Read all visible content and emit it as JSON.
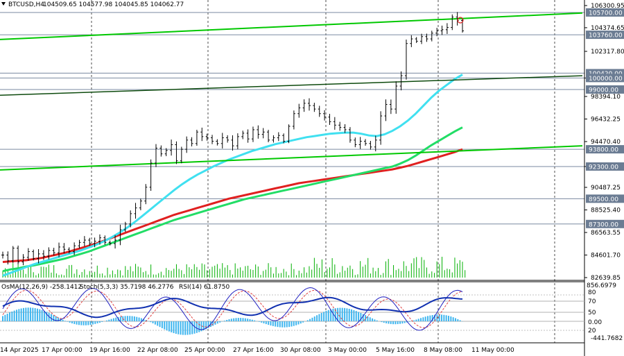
{
  "header": {
    "symbol": "BTCUSD,H4",
    "ohlc": "104509.65 104577.98 104045.85 104062.77",
    "arrow_icon": "triangle-down-icon"
  },
  "indicator_header": {
    "osma": "OsMA(12,26,9) -258.1412",
    "stoch": "Stoch(5,3,3) 35.7198 46.2776",
    "rsi": "RSI(14) 61.8750"
  },
  "colors": {
    "background": "#ffffff",
    "candle": "#000000",
    "channel": "#00c800",
    "ema_fast": "#40e0f0",
    "ema_mid": "#22dd66",
    "ema_slow": "#e02020",
    "level_tag": "#6b7c93",
    "volume": "#00b000",
    "osma": "#3fb6ef",
    "stoch_main": "#2020c0",
    "stoch_signal": "#e04040",
    "rsi": "#1030b0"
  },
  "chart_data": {
    "type": "line",
    "title": "",
    "price_axis": {
      "ticks": [
        "106300.95",
        "104374.65",
        "102317.80",
        "100000.00",
        "98394.10",
        "96432.25",
        "94470.40",
        "92300.00",
        "90487.25",
        "88525.40",
        "86563.55",
        "84601.70",
        "82639.85"
      ],
      "ylim": [
        82639.85,
        106300.95
      ]
    },
    "levels": [
      {
        "label": "105700.00",
        "value": 105700
      },
      {
        "label": "103760.00",
        "value": 103760
      },
      {
        "label": "100420.00",
        "value": 100420
      },
      {
        "label": "100000.00",
        "value": 100000
      },
      {
        "label": "99000.00",
        "value": 99000
      },
      {
        "label": "93800.00",
        "value": 93800
      },
      {
        "label": "92300.00",
        "value": 92300
      },
      {
        "label": "89500.00",
        "value": 89500
      },
      {
        "label": "87300.00",
        "value": 87300
      }
    ],
    "x_axis": {
      "labels": [
        "14 Apr 2025",
        "17 Apr 00:00",
        "19 Apr 16:00",
        "22 Apr 08:00",
        "25 Apr 00:00",
        "27 Apr 16:00",
        "30 Apr 08:00",
        "3 May 00:00",
        "5 May 16:00",
        "8 May 08:00",
        "11 May 00:00"
      ]
    },
    "price_closes": [
      84600,
      84100,
      85200,
      84000,
      84400,
      84900,
      84300,
      84700,
      84500,
      85000,
      84800,
      85300,
      85100,
      84900,
      85400,
      85700,
      85900,
      85600,
      85800,
      86100,
      85700,
      85600,
      85900,
      86800,
      87300,
      88200,
      88700,
      89300,
      90500,
      92600,
      93900,
      93400,
      93700,
      94200,
      92800,
      93800,
      94600,
      94300,
      95300,
      94900,
      94800,
      94500,
      94300,
      94800,
      94600,
      94100,
      94900,
      95200,
      94700,
      95500,
      95100,
      95300,
      94600,
      94800,
      95000,
      94500,
      95800,
      96900,
      97400,
      97800,
      97600,
      97300,
      96900,
      96600,
      96200,
      95900,
      95700,
      95500,
      94600,
      94200,
      94500,
      94300,
      94000,
      94600,
      96700,
      97700,
      97300,
      99300,
      100200,
      103000,
      103400,
      103200,
      103600,
      103400,
      103900,
      104100,
      104200,
      104400,
      105300,
      105000,
      104100
    ],
    "ema_fast": [
      82800,
      83050,
      83300,
      83550,
      83800,
      84000,
      84200,
      84400,
      84600,
      84800,
      85000,
      85250,
      85500,
      85800,
      86150,
      86550,
      87000,
      87500,
      88050,
      88600,
      89150,
      89700,
      90250,
      90750,
      91200,
      91600,
      91950,
      92300,
      92600,
      92900,
      93150,
      93400,
      93650,
      93850,
      94050,
      94250,
      94400,
      94550,
      94700,
      94850,
      94950,
      95050,
      95150,
      95200,
      95250,
      95250,
      95150,
      95000,
      94950,
      95100,
      95400,
      95800,
      96300,
      96900,
      97600,
      98300,
      98900,
      99400,
      99900,
      100300
    ],
    "ema_mid": [
      83200,
      83350,
      83450,
      83600,
      83700,
      83850,
      84000,
      84150,
      84300,
      84500,
      84700,
      84900,
      85150,
      85400,
      85650,
      85900,
      86150,
      86400,
      86650,
      86900,
      87150,
      87400,
      87650,
      87850,
      88050,
      88250,
      88450,
      88650,
      88850,
      89050,
      89250,
      89450,
      89600,
      89750,
      89900,
      90050,
      90200,
      90350,
      90500,
      90650,
      90800,
      90950,
      91100,
      91250,
      91400,
      91550,
      91700,
      91850,
      92000,
      92150,
      92300,
      92550,
      92850,
      93250,
      93700,
      94150,
      94550,
      94950,
      95350,
      95700
    ],
    "ema_slow": [
      84000,
      84050,
      84100,
      84150,
      84250,
      84350,
      84500,
      84650,
      84800,
      85000,
      85200,
      85400,
      85600,
      85850,
      86100,
      86350,
      86600,
      86850,
      87100,
      87350,
      87600,
      87850,
      88100,
      88300,
      88500,
      88700,
      88900,
      89100,
      89300,
      89500,
      89650,
      89800,
      89950,
      90100,
      90250,
      90400,
      90550,
      90700,
      90850,
      90950,
      91050,
      91150,
      91250,
      91350,
      91450,
      91550,
      91650,
      91750,
      91850,
      91950,
      92050,
      92200,
      92350,
      92550,
      92750,
      92950,
      93150,
      93350,
      93550,
      93800
    ],
    "channel_upper": [
      [
        0,
        103350
      ],
      [
        840,
        105650
      ]
    ],
    "channel_lower": [
      [
        0,
        98500
      ],
      [
        840,
        100200
      ]
    ],
    "channel_support": [
      [
        0,
        92000
      ],
      [
        840,
        94100
      ]
    ]
  }
}
